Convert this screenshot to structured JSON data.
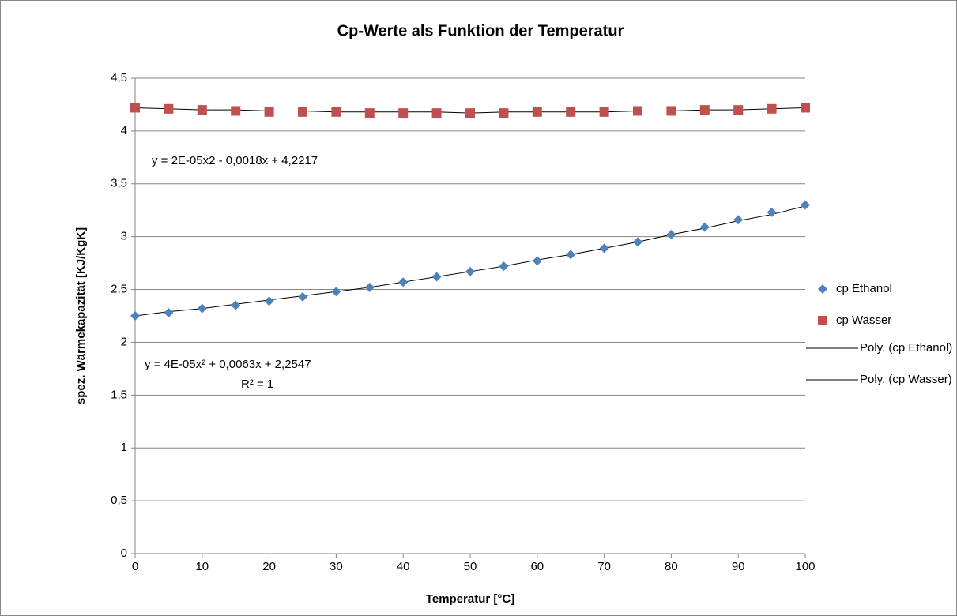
{
  "chart_data": {
    "type": "scatter",
    "title": "Cp-Werte als Funktion der Temperatur",
    "xlabel": "Temperatur [°C]",
    "ylabel": "spez. Wärmekapazität [KJ/KgK]",
    "x": [
      0,
      5,
      10,
      15,
      20,
      25,
      30,
      35,
      40,
      45,
      50,
      55,
      60,
      65,
      70,
      75,
      80,
      85,
      90,
      95,
      100
    ],
    "series": [
      {
        "name": "cp Ethanol",
        "color": "#4f81bd",
        "marker": "diamond",
        "values": [
          2.25,
          2.28,
          2.32,
          2.35,
          2.39,
          2.43,
          2.48,
          2.52,
          2.57,
          2.62,
          2.67,
          2.72,
          2.77,
          2.83,
          2.89,
          2.95,
          3.02,
          3.09,
          3.16,
          3.23,
          3.3
        ]
      },
      {
        "name": "cp Wasser",
        "color": "#c0504d",
        "marker": "square",
        "values": [
          4.22,
          4.21,
          4.2,
          4.19,
          4.18,
          4.18,
          4.18,
          4.17,
          4.17,
          4.17,
          4.17,
          4.17,
          4.18,
          4.18,
          4.18,
          4.19,
          4.19,
          4.2,
          4.2,
          4.21,
          4.22
        ]
      },
      {
        "name": "Poly. (cp Ethanol)",
        "color": "#000000",
        "marker": "none",
        "values": [
          2.25,
          2.29,
          2.32,
          2.36,
          2.4,
          2.44,
          2.48,
          2.52,
          2.57,
          2.62,
          2.67,
          2.72,
          2.78,
          2.83,
          2.89,
          2.95,
          3.02,
          3.08,
          3.15,
          3.21,
          3.29
        ]
      },
      {
        "name": "Poly. (cp Wasser)",
        "color": "#000000",
        "marker": "none",
        "values": [
          4.22,
          4.21,
          4.2,
          4.2,
          4.19,
          4.19,
          4.18,
          4.18,
          4.18,
          4.18,
          4.17,
          4.18,
          4.18,
          4.18,
          4.18,
          4.19,
          4.19,
          4.2,
          4.2,
          4.21,
          4.22
        ]
      }
    ],
    "xlim": [
      0,
      100
    ],
    "xticks": [
      0,
      10,
      20,
      30,
      40,
      50,
      60,
      70,
      80,
      90,
      100
    ],
    "ylim": [
      0,
      4.5
    ],
    "yticks": [
      0,
      {
        "value": 0.5,
        "label": "0,5"
      },
      1,
      {
        "value": 1.5,
        "label": "1,5"
      },
      2,
      {
        "value": 2.5,
        "label": "2,5"
      },
      3,
      {
        "value": 3.5,
        "label": "3,5"
      },
      4,
      {
        "value": 4.5,
        "label": "4,5"
      }
    ],
    "grid": true,
    "legend": "right",
    "annotations": [
      "y = 2E-05x2 - 0,0018x + 4,2217",
      "y = 4E-05x² + 0,0063x + 2,2547",
      "R² = 1"
    ]
  }
}
